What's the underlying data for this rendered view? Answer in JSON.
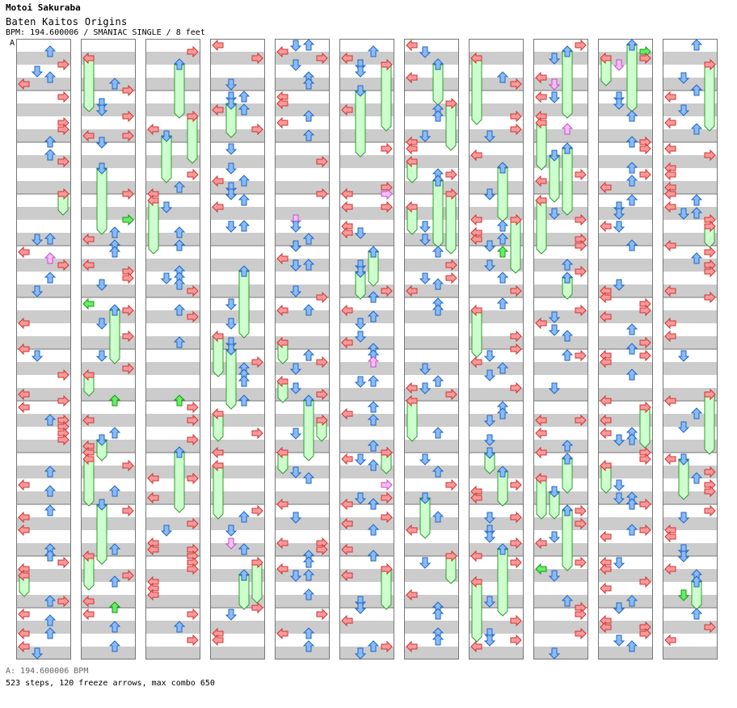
{
  "artist": "Motoi Sakuraba",
  "song_title": "Baten Kaitos Origins",
  "meta_line": "BPM: 194.600006 / SMANIAC SINGLE / 8 feet",
  "segment_marker": "A",
  "footer": {
    "bpm_line": "A: 194.600006 BPM",
    "stats_line": "523 steps, 120 freeze arrows, max combo 650"
  },
  "colors": {
    "band": "#cccccc",
    "border": "#777777",
    "red": "#ff9999",
    "red_stroke": "#cc3333",
    "blue": "#88bbff",
    "blue_stroke": "#2266bb",
    "green": "#66ee66",
    "green_stroke": "#119911",
    "pink": "#ffbbff",
    "pink_stroke": "#bb55bb",
    "freeze": "#ccffcc",
    "freeze_stroke": "#339933"
  },
  "chart_data": {
    "type": "table",
    "title": "Baten Kaitos Origins",
    "chart_type_label": "SMANIAC SINGLE",
    "difficulty_feet": 8,
    "bpm": 194.600006,
    "columns": 11,
    "measures_per_column": 12,
    "lanes": [
      "left",
      "down",
      "up",
      "right"
    ],
    "steps": 523,
    "freeze_arrows": 120,
    "max_combo": 650
  }
}
